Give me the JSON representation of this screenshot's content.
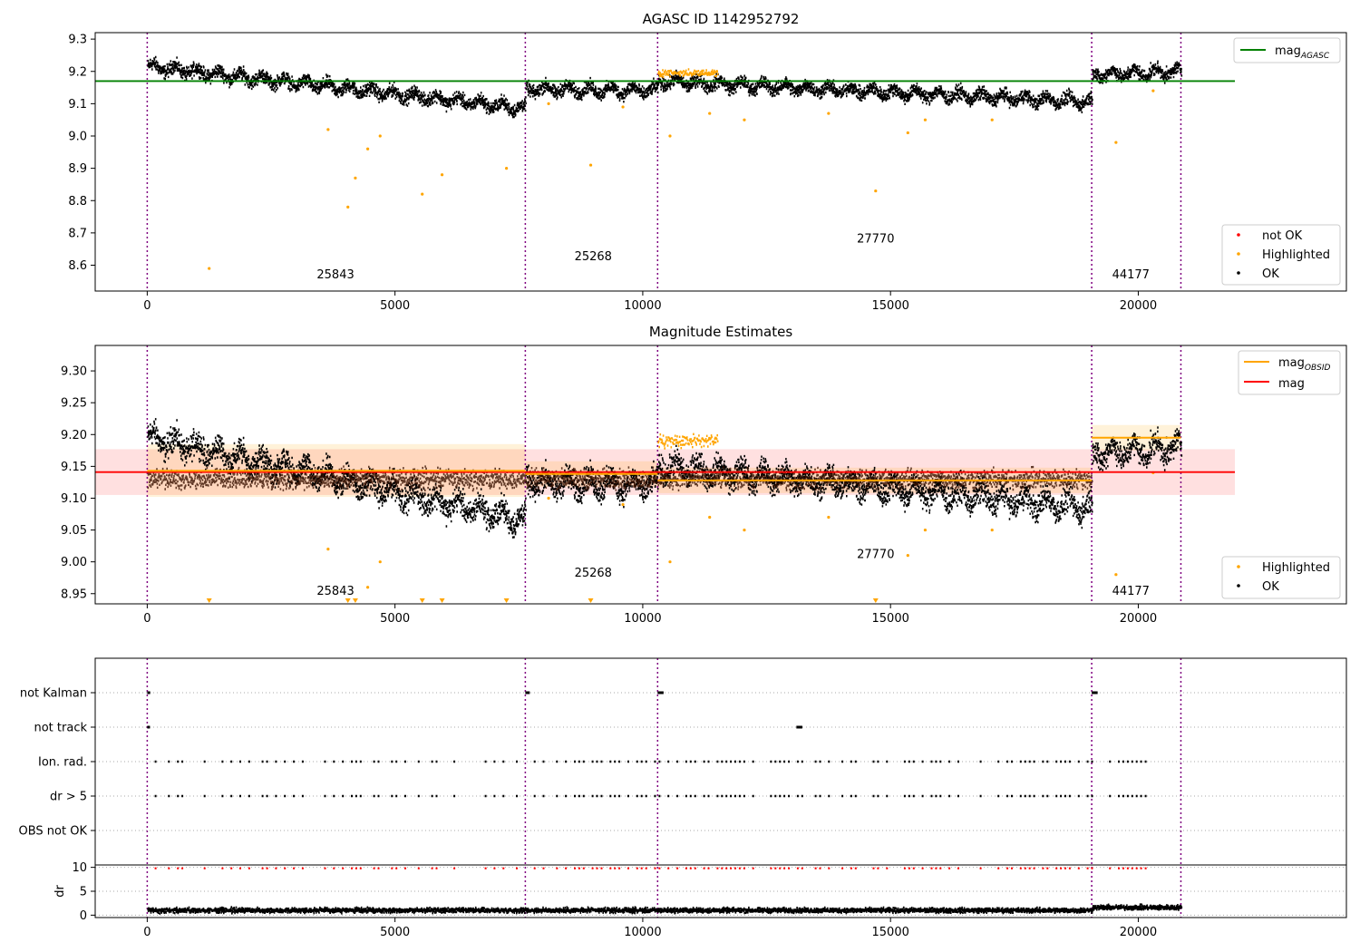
{
  "chart_data": [
    {
      "id": "agasc",
      "type": "scatter",
      "title": "AGASC ID 1142952792",
      "xlim": [
        -1050,
        24200
      ],
      "ylim": [
        8.52,
        9.32
      ],
      "xticks": [
        0,
        5000,
        10000,
        15000,
        20000
      ],
      "xtick_labels": [
        "0",
        "5000",
        "10000",
        "15000",
        "20000"
      ],
      "yticks": [
        8.6,
        8.7,
        8.8,
        8.9,
        9.0,
        9.1,
        9.2,
        9.3
      ],
      "ytick_labels": [
        "8.6",
        "8.7",
        "8.8",
        "8.9",
        "9.0",
        "9.1",
        "9.2",
        "9.3"
      ],
      "mag_agasc": 9.17,
      "legend_line": {
        "label": "mag",
        "sub": "AGASC",
        "color": "#008000"
      },
      "legend_points": [
        {
          "label": "not OK",
          "color": "#ff0000"
        },
        {
          "label": "Highlighted",
          "color": "#ffa500"
        },
        {
          "label": "OK",
          "color": "#000000"
        }
      ],
      "obsid_labels": [
        {
          "text": "25843",
          "x": 3800,
          "y": 8.56
        },
        {
          "text": "25268",
          "x": 9000,
          "y": 8.615
        },
        {
          "text": "27770",
          "x": 14700,
          "y": 8.67
        },
        {
          "text": "44177",
          "x": 19850,
          "y": 8.56
        }
      ]
    },
    {
      "id": "mag-estimates",
      "type": "scatter",
      "title": "Magnitude Estimates",
      "xlim": [
        -1050,
        24200
      ],
      "ylim": [
        8.934,
        9.34
      ],
      "xticks": [
        0,
        5000,
        10000,
        15000,
        20000
      ],
      "xtick_labels": [
        "0",
        "5000",
        "10000",
        "15000",
        "20000"
      ],
      "yticks": [
        8.95,
        9.0,
        9.05,
        9.1,
        9.15,
        9.2,
        9.25,
        9.3
      ],
      "ytick_labels": [
        "8.95",
        "9.00",
        "9.05",
        "9.10",
        "9.15",
        "9.20",
        "9.25",
        "9.30"
      ],
      "mag": 9.141,
      "mag_band": [
        9.105,
        9.177
      ],
      "mag_obsid": [
        {
          "x0": 0,
          "x1": 7630,
          "mag": 9.143,
          "lo": 9.102,
          "hi": 9.185
        },
        {
          "x0": 7630,
          "x1": 10300,
          "mag": 9.138,
          "lo": 9.118,
          "hi": 9.158
        },
        {
          "x0": 10300,
          "x1": 19060,
          "mag": 9.128,
          "lo": 9.108,
          "hi": 9.148
        },
        {
          "x0": 19060,
          "x1": 20860,
          "mag": 9.195,
          "lo": 9.175,
          "hi": 9.215
        }
      ],
      "legend_lines": [
        {
          "label": "mag",
          "sub": "OBSID",
          "color": "#ffa500"
        },
        {
          "label": "mag",
          "sub": "",
          "color": "#ff0000"
        }
      ],
      "legend_points": [
        {
          "label": "Highlighted",
          "color": "#ffa500"
        },
        {
          "label": "OK",
          "color": "#000000"
        }
      ],
      "obsid_labels": [
        {
          "text": "25843",
          "x": 3800,
          "y": 8.948
        },
        {
          "text": "25268",
          "x": 9000,
          "y": 8.977
        },
        {
          "text": "27770",
          "x": 14700,
          "y": 9.006
        },
        {
          "text": "44177",
          "x": 19850,
          "y": 8.948
        }
      ]
    },
    {
      "id": "flags",
      "type": "scatter",
      "xlim": [
        -1050,
        24200
      ],
      "xticks": [
        0,
        5000,
        10000,
        15000,
        20000
      ],
      "xtick_labels": [
        "0",
        "5000",
        "10000",
        "15000",
        "20000"
      ],
      "flag_rows": [
        "not Kalman",
        "not track",
        "Ion. rad.",
        "dr > 5",
        "OBS not OK"
      ],
      "dr_ylim": [
        -0.5,
        10.5
      ],
      "dr_yticks": [
        0,
        5,
        10
      ],
      "dr_ytick_labels": [
        "0",
        "5",
        "10"
      ],
      "dr_ylabel": "dr"
    }
  ],
  "obsid_boundaries": [
    0,
    7630,
    10300,
    19060,
    20860
  ],
  "segments": [
    {
      "x0": 0,
      "x1": 7630,
      "start": 9.215,
      "end": 9.085
    },
    {
      "x0": 7630,
      "x1": 10300,
      "start": 9.145,
      "end": 9.14
    },
    {
      "x0": 10300,
      "x1": 19060,
      "start": 9.17,
      "end": 9.105
    },
    {
      "x0": 19060,
      "x1": 20860,
      "start": 9.19,
      "end": 9.2
    }
  ],
  "highlighted_outliers": [
    [
      1250,
      8.59
    ],
    [
      3650,
      9.02
    ],
    [
      4050,
      8.78
    ],
    [
      4200,
      8.87
    ],
    [
      4450,
      8.96
    ],
    [
      4700,
      9.0
    ],
    [
      5550,
      8.82
    ],
    [
      5950,
      8.88
    ],
    [
      7250,
      8.9
    ],
    [
      8100,
      9.1
    ],
    [
      8950,
      8.91
    ],
    [
      9600,
      9.09
    ],
    [
      10550,
      9.0
    ],
    [
      11350,
      9.07
    ],
    [
      12050,
      9.05
    ],
    [
      13750,
      9.07
    ],
    [
      14700,
      8.83
    ],
    [
      15350,
      9.01
    ],
    [
      15700,
      9.05
    ],
    [
      17050,
      9.05
    ],
    [
      19550,
      8.98
    ],
    [
      20300,
      9.14
    ]
  ],
  "colors": {
    "ok": "#000000",
    "highlighted": "#ffa500",
    "not_ok": "#ff0000",
    "boundary": "#800080",
    "agasc_line": "#008000",
    "mag_line": "#ff0000",
    "obsid_line": "#ffa500"
  }
}
